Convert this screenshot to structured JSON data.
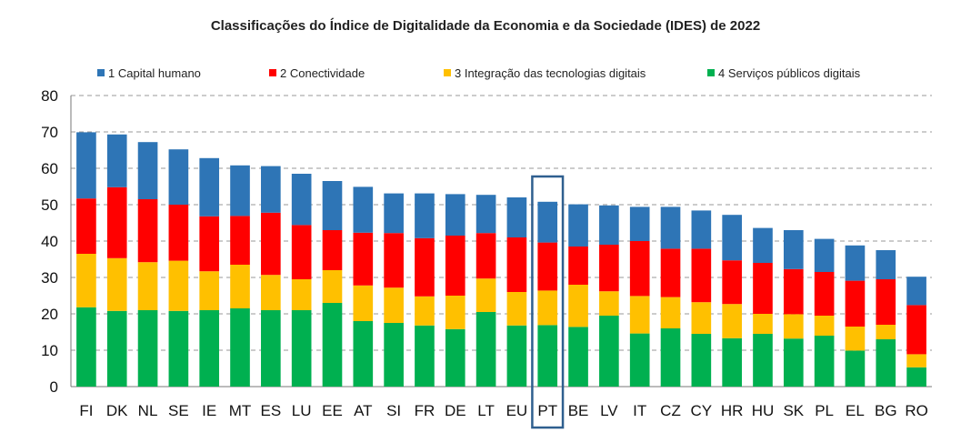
{
  "chart_data": {
    "type": "bar",
    "stacked": true,
    "title": "Classificações do Índice de Digitalidade da Economia e da Sociedade (IDES) de 2022",
    "xlabel": "",
    "ylabel": "",
    "ylim": [
      0,
      80
    ],
    "yticks": [
      0,
      10,
      20,
      30,
      40,
      50,
      60,
      70,
      80
    ],
    "grid": true,
    "legend_position": "top",
    "highlighted_category": "PT",
    "categories": [
      "FI",
      "DK",
      "NL",
      "SE",
      "IE",
      "MT",
      "ES",
      "LU",
      "EE",
      "AT",
      "SI",
      "FR",
      "DE",
      "LT",
      "EU",
      "PT",
      "BE",
      "LV",
      "IT",
      "CZ",
      "CY",
      "HR",
      "HU",
      "SK",
      "PL",
      "EL",
      "BG",
      "RO"
    ],
    "series": [
      {
        "name": "4 Serviços públicos digitais",
        "color": "#00b050",
        "values": [
          21.8,
          20.8,
          21.0,
          20.8,
          21.0,
          21.5,
          21.0,
          21.0,
          23.0,
          18.0,
          17.5,
          16.8,
          15.8,
          20.5,
          16.8,
          16.9,
          16.4,
          19.5,
          14.6,
          16.0,
          14.5,
          13.3,
          14.5,
          13.2,
          14.0,
          9.9,
          13.0,
          5.3
        ]
      },
      {
        "name": "3 Integração das tecnologias digitais",
        "color": "#ffc000",
        "values": [
          14.7,
          14.5,
          13.2,
          13.8,
          10.7,
          12.0,
          9.7,
          8.5,
          9.0,
          9.8,
          9.7,
          8.0,
          9.2,
          9.2,
          9.2,
          9.5,
          11.6,
          6.7,
          10.3,
          8.6,
          8.7,
          9.4,
          5.5,
          6.7,
          5.5,
          6.6,
          4.0,
          3.6
        ]
      },
      {
        "name": "2 Conectividade",
        "color": "#ff0000",
        "values": [
          15.2,
          19.5,
          17.3,
          15.4,
          15.1,
          13.4,
          17.1,
          14.9,
          11.0,
          14.5,
          15.0,
          16.0,
          16.5,
          12.5,
          15.0,
          13.2,
          10.5,
          12.8,
          15.1,
          13.3,
          14.7,
          12.0,
          14.0,
          12.4,
          12.0,
          12.6,
          12.5,
          13.5
        ]
      },
      {
        "name": "1 Capital humano",
        "color": "#2e75b6",
        "values": [
          18.2,
          14.5,
          15.7,
          15.2,
          16.0,
          13.9,
          12.8,
          14.1,
          13.5,
          12.6,
          10.9,
          12.3,
          11.4,
          10.5,
          11.0,
          11.2,
          11.6,
          10.8,
          9.4,
          11.5,
          10.5,
          12.5,
          9.6,
          10.7,
          9.1,
          9.7,
          8.0,
          7.8
        ]
      }
    ]
  }
}
